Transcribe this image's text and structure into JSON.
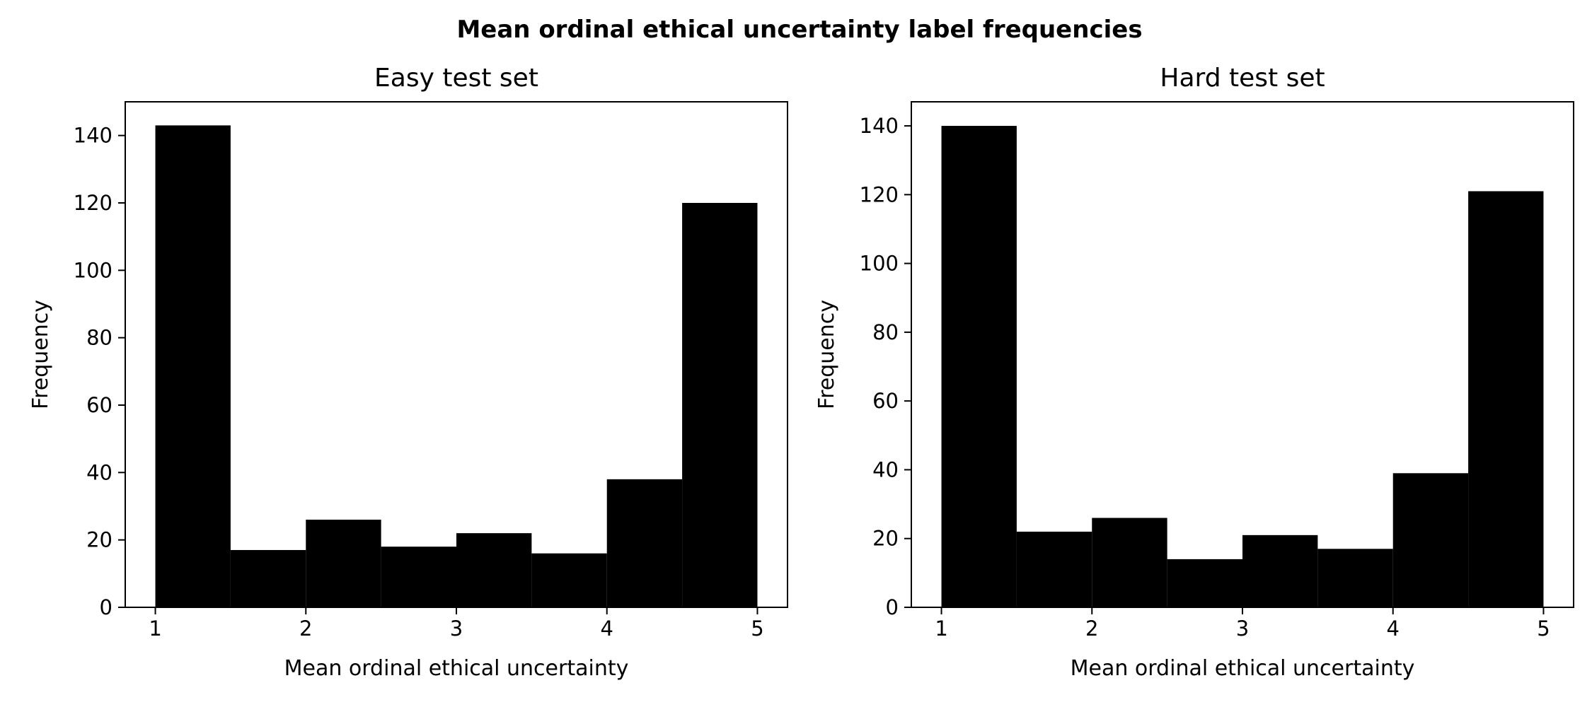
{
  "figure_title": "Mean ordinal ethical uncertainty label frequencies",
  "chart_data": [
    {
      "type": "bar",
      "title": "Easy test set",
      "xlabel": "Mean ordinal ethical uncertainty",
      "ylabel": "Frequency",
      "bin_edges": [
        1.0,
        1.5,
        2.0,
        2.5,
        3.0,
        3.5,
        4.0,
        4.5,
        5.0
      ],
      "values": [
        143,
        17,
        26,
        18,
        22,
        16,
        38,
        120
      ],
      "xlim": [
        0.8,
        5.2
      ],
      "ylim": [
        0,
        150
      ],
      "xticks": [
        1,
        2,
        3,
        4,
        5
      ],
      "yticks": [
        0,
        20,
        40,
        60,
        80,
        100,
        120,
        140
      ],
      "bar_color": "#000000",
      "grid": false
    },
    {
      "type": "bar",
      "title": "Hard test set",
      "xlabel": "Mean ordinal ethical uncertainty",
      "ylabel": "Frequency",
      "bin_edges": [
        1.0,
        1.5,
        2.0,
        2.5,
        3.0,
        3.5,
        4.0,
        4.5,
        5.0
      ],
      "values": [
        140,
        22,
        26,
        14,
        21,
        17,
        39,
        121
      ],
      "xlim": [
        0.8,
        5.2
      ],
      "ylim": [
        0,
        147
      ],
      "xticks": [
        1,
        2,
        3,
        4,
        5
      ],
      "yticks": [
        0,
        20,
        40,
        60,
        80,
        100,
        120,
        140
      ],
      "bar_color": "#000000",
      "grid": false
    }
  ]
}
